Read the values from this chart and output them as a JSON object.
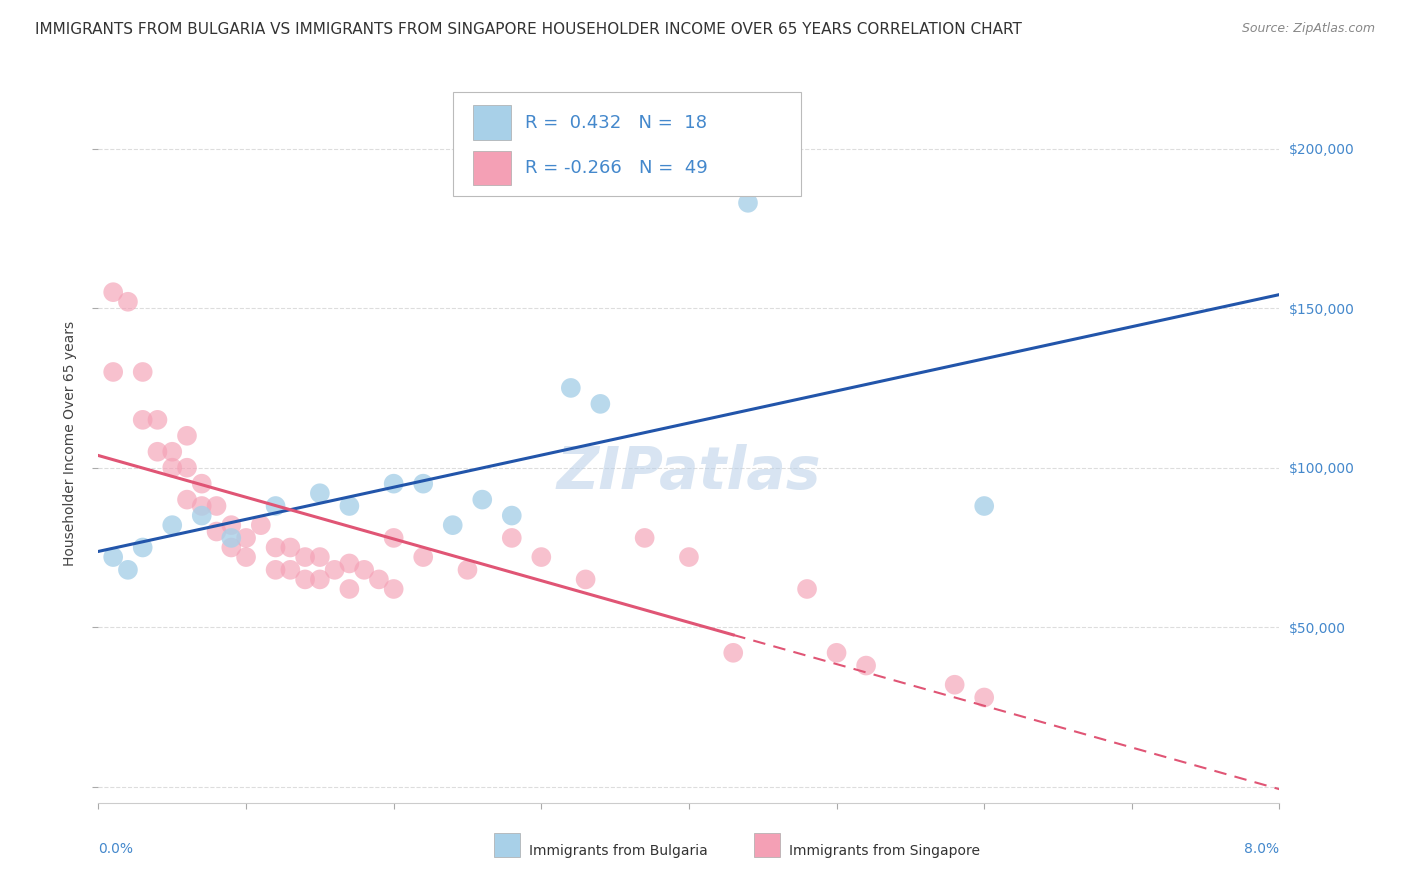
{
  "title": "IMMIGRANTS FROM BULGARIA VS IMMIGRANTS FROM SINGAPORE HOUSEHOLDER INCOME OVER 65 YEARS CORRELATION CHART",
  "source": "Source: ZipAtlas.com",
  "ylabel": "Householder Income Over 65 years",
  "xlim": [
    0.0,
    0.08
  ],
  "ylim": [
    -5000,
    220000
  ],
  "yticks": [
    0,
    50000,
    100000,
    150000,
    200000
  ],
  "ytick_labels": [
    "",
    "$50,000",
    "$100,000",
    "$150,000",
    "$200,000"
  ],
  "xtick_positions": [
    0.0,
    0.01,
    0.02,
    0.03,
    0.04,
    0.05,
    0.06,
    0.07,
    0.08
  ],
  "bulgaria_R": 0.432,
  "bulgaria_N": 18,
  "singapore_R": -0.266,
  "singapore_N": 49,
  "bulgaria_color": "#a8d0e8",
  "singapore_color": "#f4a0b5",
  "bulgaria_line_color": "#2255aa",
  "singapore_line_color": "#e05575",
  "watermark_text": "ZIPatlas",
  "background_color": "#ffffff",
  "grid_color": "#dddddd",
  "bulgaria_points": [
    [
      0.001,
      72000
    ],
    [
      0.002,
      68000
    ],
    [
      0.003,
      75000
    ],
    [
      0.005,
      82000
    ],
    [
      0.007,
      85000
    ],
    [
      0.009,
      78000
    ],
    [
      0.012,
      88000
    ],
    [
      0.015,
      92000
    ],
    [
      0.017,
      88000
    ],
    [
      0.02,
      95000
    ],
    [
      0.022,
      95000
    ],
    [
      0.024,
      82000
    ],
    [
      0.026,
      90000
    ],
    [
      0.028,
      85000
    ],
    [
      0.032,
      125000
    ],
    [
      0.034,
      120000
    ],
    [
      0.044,
      183000
    ],
    [
      0.06,
      88000
    ]
  ],
  "singapore_points": [
    [
      0.001,
      155000
    ],
    [
      0.001,
      130000
    ],
    [
      0.002,
      152000
    ],
    [
      0.003,
      130000
    ],
    [
      0.003,
      115000
    ],
    [
      0.004,
      115000
    ],
    [
      0.004,
      105000
    ],
    [
      0.005,
      105000
    ],
    [
      0.005,
      100000
    ],
    [
      0.006,
      110000
    ],
    [
      0.006,
      100000
    ],
    [
      0.006,
      90000
    ],
    [
      0.007,
      95000
    ],
    [
      0.007,
      88000
    ],
    [
      0.008,
      88000
    ],
    [
      0.008,
      80000
    ],
    [
      0.009,
      82000
    ],
    [
      0.009,
      75000
    ],
    [
      0.01,
      78000
    ],
    [
      0.01,
      72000
    ],
    [
      0.011,
      82000
    ],
    [
      0.012,
      75000
    ],
    [
      0.012,
      68000
    ],
    [
      0.013,
      75000
    ],
    [
      0.013,
      68000
    ],
    [
      0.014,
      72000
    ],
    [
      0.014,
      65000
    ],
    [
      0.015,
      72000
    ],
    [
      0.015,
      65000
    ],
    [
      0.016,
      68000
    ],
    [
      0.017,
      70000
    ],
    [
      0.017,
      62000
    ],
    [
      0.018,
      68000
    ],
    [
      0.019,
      65000
    ],
    [
      0.02,
      78000
    ],
    [
      0.02,
      62000
    ],
    [
      0.022,
      72000
    ],
    [
      0.025,
      68000
    ],
    [
      0.028,
      78000
    ],
    [
      0.03,
      72000
    ],
    [
      0.033,
      65000
    ],
    [
      0.037,
      78000
    ],
    [
      0.04,
      72000
    ],
    [
      0.043,
      42000
    ],
    [
      0.048,
      62000
    ],
    [
      0.05,
      42000
    ],
    [
      0.052,
      38000
    ],
    [
      0.058,
      32000
    ],
    [
      0.06,
      28000
    ]
  ],
  "legend_color": "#4488cc",
  "title_fontsize": 11,
  "source_fontsize": 9,
  "axis_label_fontsize": 10,
  "legend_fontsize": 13,
  "tick_label_fontsize": 10,
  "watermark_fontsize": 42,
  "watermark_color": "#b8cfe8",
  "watermark_alpha": 0.55,
  "scatter_size": 200,
  "scatter_alpha": 0.65
}
